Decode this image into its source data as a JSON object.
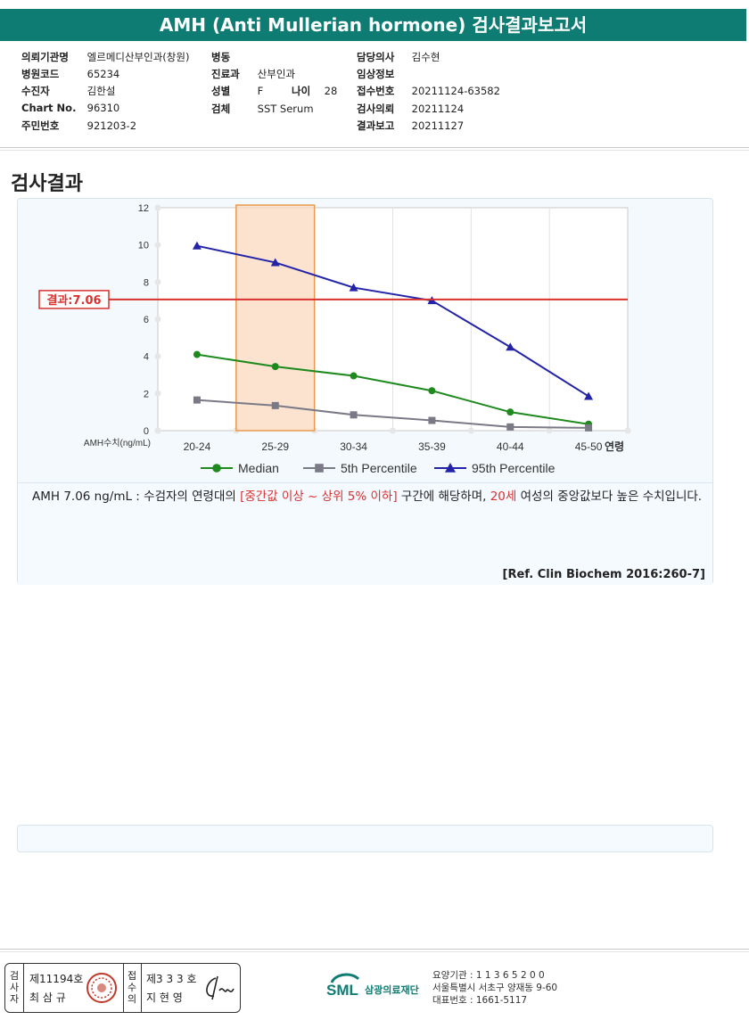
{
  "report": {
    "title": "AMH (Anti Mullerian hormone) 검사결과보고서"
  },
  "info": {
    "institution_label": "의뢰기관명",
    "institution": "엘르메디산부인과(창원)",
    "ward_label": "병동",
    "ward": "",
    "doctor_label": "담당의사",
    "doctor": "김수현",
    "hospital_code_label": "병원코드",
    "hospital_code": "65234",
    "department_label": "진료과",
    "department": "산부인과",
    "clinical_label": "임상정보",
    "clinical": "",
    "patient_label": "수진자",
    "patient": "김한설",
    "sex_label": "성별",
    "sex": "F",
    "age_label": "나이",
    "age": "28",
    "receipt_label": "접수번호",
    "receipt": "20211124-63582",
    "chart_label": "Chart No.",
    "chart": "96310",
    "specimen_label": "검체",
    "specimen": "SST Serum",
    "request_label": "검사의뢰",
    "request": "20211124",
    "resident_label": "주민번호",
    "resident": "921203-2",
    "result_report_label": "결과보고",
    "result_report": "20211127"
  },
  "section": {
    "title": "검사결과"
  },
  "chart_data": {
    "type": "line",
    "categories": [
      "20-24",
      "25-29",
      "30-34",
      "35-39",
      "40-44",
      "45-50"
    ],
    "xlabel": "연령",
    "ylabel": "AMH수치(ng/mL)",
    "ylim": [
      0,
      12
    ],
    "yticks": [
      0,
      2,
      4,
      6,
      8,
      10,
      12
    ],
    "grid": true,
    "highlight_category": "25-29",
    "series": [
      {
        "name": "Median",
        "color": "#1e8a1e",
        "marker": "circle",
        "values": [
          4.1,
          3.45,
          2.95,
          2.15,
          1.0,
          0.35
        ]
      },
      {
        "name": "5th Percentile",
        "color": "#7a7a86",
        "marker": "square",
        "values": [
          1.65,
          1.35,
          0.85,
          0.55,
          0.2,
          0.15
        ]
      },
      {
        "name": "95th Percentile",
        "color": "#2323a8",
        "marker": "triangle",
        "values": [
          9.95,
          9.05,
          7.7,
          7.0,
          4.5,
          1.85
        ]
      }
    ],
    "result_line": {
      "label": "결과:7.06",
      "value": 7.06,
      "color": "#d9322e"
    },
    "legend_position": "bottom"
  },
  "description": {
    "part1": "AMH  7.06 ng/mL : 수검자의 연령대의 ",
    "highlight1": "[중간값 이상 ~ 상위 5% 이하]",
    "part2": " 구간에 해당하며, ",
    "highlight2": "20세",
    "part3": " 여성의 중앙값보다 높은 수치입니다.",
    "reference": "[Ref. Clin Biochem 2016:260-7]"
  },
  "footer": {
    "inspector_label": "검사자",
    "inspector_license": "제11194호",
    "inspector_name": "최 삼 규",
    "confirmer_label": "접수의",
    "confirmer_license": "제3 3 3 호",
    "confirmer_name": "지 현 영",
    "logo_text": "SML",
    "org_name": "삼광의료재단",
    "care_code": "요양기관 : 1 1 3 6 5 2 0 0",
    "address": "서울특별시 서초구 양재동 9-60",
    "phone": "대표번호 : 1661-5117",
    "stamp_color": "#c0392b",
    "brand_color": "#0e7c73"
  }
}
